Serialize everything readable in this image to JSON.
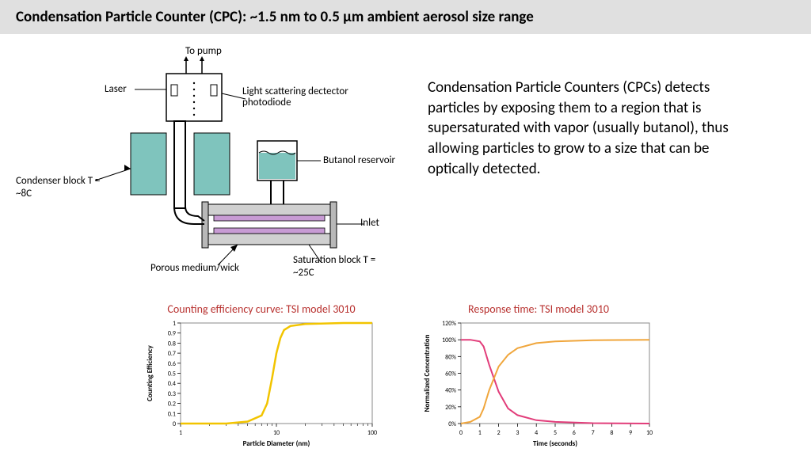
{
  "title": "Condensation Particle Counter (CPC): ~1.5 nm to 0.5 μm ambient aerosol size range",
  "description": "Condensation Particle Counters (CPCs) detects particles by exposing them to a  region that is supersaturated with vapor (usually butanol), thus allowing particles to grow to a size that can be optically detected.",
  "diagram": {
    "labels": {
      "to_pump": "To pump",
      "laser": "Laser",
      "photodiode": "Light scattering dectector photodiode",
      "condenser": "Condenser block T = ~8C",
      "butanol": "Butanol reservoir",
      "inlet": "Inlet",
      "porous": "Porous medium/wick",
      "saturation": "Saturation block T = ~25C"
    },
    "colors": {
      "condenser_fill": "#7fc4bd",
      "butanol_fill": "#7fc4bd",
      "wick_fill": "#c89bd4",
      "block_fill": "#d0d0d0",
      "outline": "#000",
      "tube": "#fff"
    }
  },
  "chart1": {
    "title": "Counting efficiency curve: TSI model 3010",
    "type": "line",
    "xlabel": "Particle Diameter (nm)",
    "ylabel": "Counting Efficiency",
    "xscale": "log",
    "xlim": [
      1,
      100
    ],
    "ylim": [
      0,
      1
    ],
    "xticks": [
      1,
      10,
      100
    ],
    "yticks": [
      0,
      0.1,
      0.2,
      0.3,
      0.4,
      0.5,
      0.6,
      0.7,
      0.8,
      0.9,
      1
    ],
    "line_color": "#f2c400",
    "line_width": 2.5,
    "background_color": "#ffffff",
    "border_color": "#888",
    "tick_fontsize": 8,
    "label_fontsize": 9,
    "data": {
      "x": [
        1,
        3,
        5,
        7,
        8,
        9,
        10,
        11,
        12,
        14,
        20,
        50,
        100
      ],
      "y": [
        0,
        0,
        0.02,
        0.08,
        0.2,
        0.45,
        0.7,
        0.85,
        0.93,
        0.97,
        0.99,
        1,
        1
      ]
    }
  },
  "chart2": {
    "title": "Response time: TSI model 3010",
    "type": "line",
    "xlabel": "Time (seconds)",
    "ylabel": "Normalized Concentration",
    "xlim": [
      0,
      10
    ],
    "ylim": [
      0,
      120
    ],
    "xticks": [
      0,
      1,
      2,
      3,
      4,
      5,
      6,
      7,
      8,
      9,
      10
    ],
    "yticks": [
      0,
      20,
      40,
      60,
      80,
      100,
      120
    ],
    "ytick_labels": [
      "0%",
      "20%",
      "40%",
      "60%",
      "80%",
      "100%",
      "120%"
    ],
    "series": [
      {
        "color": "#e23d7a",
        "line_width": 2,
        "data": {
          "x": [
            0,
            0.5,
            1,
            1.2,
            1.5,
            2,
            2.5,
            3,
            4,
            5,
            7,
            10
          ],
          "y": [
            100,
            100,
            98,
            92,
            70,
            38,
            18,
            10,
            4,
            2,
            0.5,
            0
          ]
        }
      },
      {
        "color": "#f0a63c",
        "line_width": 2,
        "data": {
          "x": [
            0,
            0.5,
            1,
            1.2,
            1.5,
            2,
            2.5,
            3,
            4,
            5,
            7,
            10
          ],
          "y": [
            0,
            2,
            8,
            18,
            40,
            68,
            82,
            90,
            96,
            98,
            99.5,
            100
          ]
        }
      }
    ],
    "background_color": "#ffffff",
    "border_color": "#888",
    "tick_fontsize": 8,
    "label_fontsize": 9
  }
}
